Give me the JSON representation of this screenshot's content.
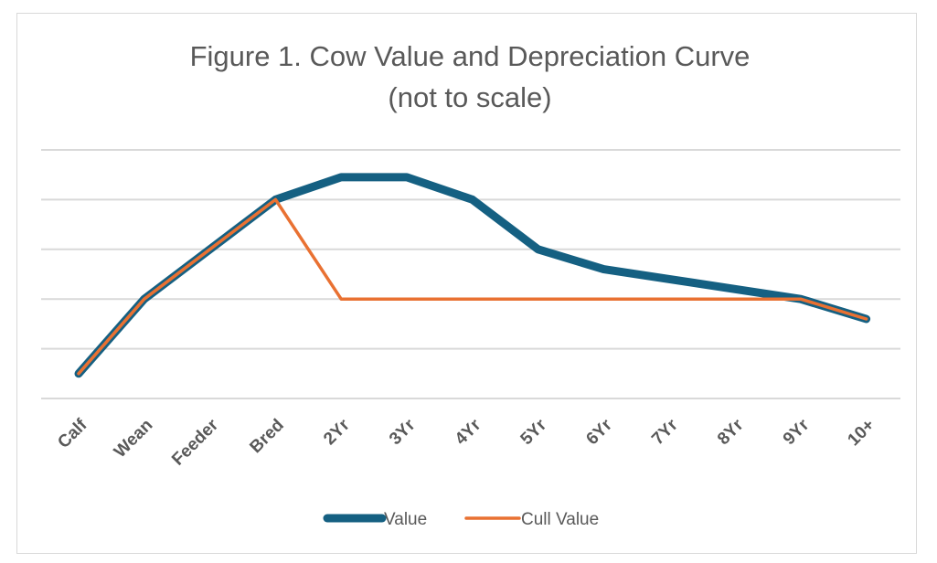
{
  "chart_data": {
    "type": "line",
    "title": "Figure 1. Cow Value and Depreciation Curve",
    "subtitle": "(not to scale)",
    "categories": [
      "Calf",
      "Wean",
      "Feeder",
      "Bred",
      "2Yr",
      "3Yr",
      "4Yr",
      "5Yr",
      "6Yr",
      "7Yr",
      "8Yr",
      "9Yr",
      "10+"
    ],
    "series": [
      {
        "name": "Value",
        "color": "#156082",
        "values": [
          0.5,
          2.0,
          3.0,
          4.0,
          4.45,
          4.45,
          4.0,
          3.0,
          2.6,
          2.4,
          2.2,
          2.0,
          1.6
        ]
      },
      {
        "name": "Cull Value",
        "color": "#E97132",
        "values": [
          0.5,
          2.0,
          3.0,
          4.0,
          2.0,
          2.0,
          2.0,
          2.0,
          2.0,
          2.0,
          2.0,
          2.0,
          1.6
        ]
      }
    ],
    "ylim": [
      0,
      5
    ],
    "y_axis_labels_shown": false,
    "grid": true,
    "legend": "bottom",
    "xlabel": "",
    "ylabel": ""
  }
}
